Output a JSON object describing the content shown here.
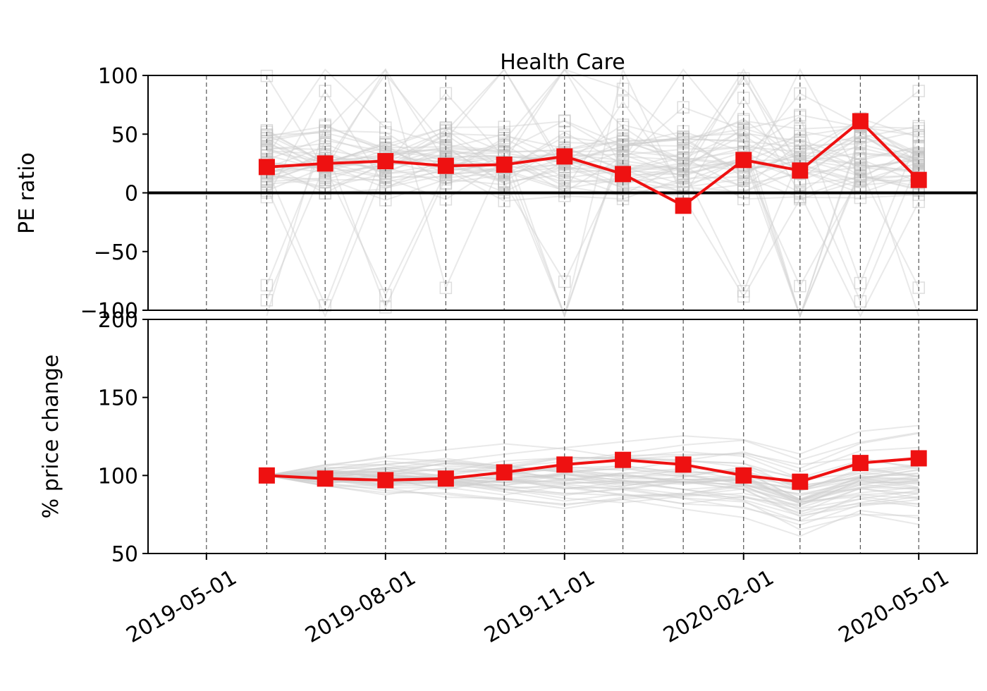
{
  "chart_data": [
    {
      "type": "line",
      "title": "Health Care",
      "xlabel": "",
      "ylabel": "PE ratio",
      "ylim": [
        -100,
        100
      ],
      "yticks": [
        "100",
        "50",
        "0",
        "−50",
        "−100"
      ],
      "xlim": [
        "2019-04-01",
        "2020-05-31"
      ],
      "grid": "vertical dashed lines at each month start",
      "zero_line": true,
      "background_series": "many faint gray lines with hollow square markers (individual health care stocks)",
      "series": [
        {
          "color": "#ee1111",
          "marker": "square",
          "x": [
            "2019-06-01",
            "2019-07-01",
            "2019-08-01",
            "2019-09-01",
            "2019-10-01",
            "2019-11-01",
            "2019-12-01",
            "2020-01-01",
            "2020-02-01",
            "2020-03-01",
            "2020-04-01",
            "2020-05-01"
          ],
          "values": [
            22,
            25,
            27,
            23,
            24,
            31,
            16,
            -11,
            28,
            19,
            61,
            11
          ]
        }
      ]
    },
    {
      "type": "line",
      "title": "",
      "xlabel": "",
      "ylabel": "% price change",
      "ylim": [
        50,
        200
      ],
      "yticks": [
        "200",
        "150",
        "100",
        "50"
      ],
      "xticks": [
        "2019-05-01",
        "2019-08-01",
        "2019-11-01",
        "2020-02-01",
        "2020-05-01"
      ],
      "xlim": [
        "2019-04-01",
        "2020-05-31"
      ],
      "grid": "vertical dashed lines at each month start",
      "background_series": "many faint gray lines (individual health care stocks)",
      "series": [
        {
          "color": "#ee1111",
          "marker": "square",
          "x": [
            "2019-06-01",
            "2019-07-01",
            "2019-08-01",
            "2019-09-01",
            "2019-10-01",
            "2019-11-01",
            "2019-12-01",
            "2020-01-01",
            "2020-02-01",
            "2020-03-01",
            "2020-04-01",
            "2020-05-01"
          ],
          "values": [
            100,
            98,
            97,
            98,
            102,
            107,
            110,
            107,
            100,
            96,
            108,
            111
          ]
        }
      ]
    }
  ],
  "colors": {
    "highlight": "#ee1111",
    "background_lines": "#c8c8c8",
    "axes": "#000000"
  }
}
